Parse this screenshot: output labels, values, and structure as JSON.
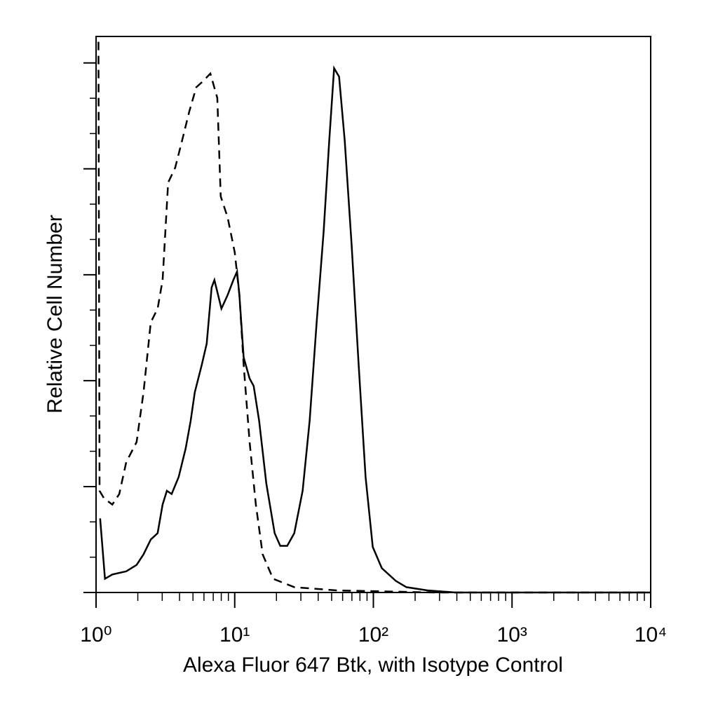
{
  "chart_data": {
    "type": "line",
    "xlabel": "Alexa Fluor 647 Btk, with Isotype Control",
    "ylabel": "Relative Cell Number",
    "xscale": "log",
    "xlim": [
      1,
      10000
    ],
    "xticks": [
      {
        "value": 1,
        "label": "10⁰"
      },
      {
        "value": 10,
        "label": "10¹"
      },
      {
        "value": 100,
        "label": "10²"
      },
      {
        "value": 1000,
        "label": "10³"
      },
      {
        "value": 10000,
        "label": "10⁴"
      }
    ],
    "ylim": [
      0,
      5.25
    ],
    "yticks": [
      0,
      1,
      2,
      3,
      4,
      5
    ],
    "series": [
      {
        "color": "#000000",
        "style": "solid",
        "x": [
          1.07,
          1.16,
          1.31,
          1.65,
          1.96,
          2.2,
          2.48,
          2.78,
          3.02,
          3.24,
          3.51,
          3.94,
          4.43,
          4.81,
          5.15,
          5.79,
          6.28,
          6.81,
          7.14,
          8.02,
          8.9,
          9.77,
          10.4,
          10.8,
          11.6,
          12.8,
          13.7,
          15.0,
          16.9,
          19.4,
          21.3,
          23.9,
          26.9,
          30.9,
          34.7,
          39.0,
          43.8,
          48.1,
          52.1,
          56.6,
          62.1,
          69.7,
          78.3,
          87.9,
          98.9,
          115,
          145,
          173,
          245,
          390,
          10000
        ],
        "values": [
          0.7,
          0.13,
          0.17,
          0.2,
          0.26,
          0.36,
          0.5,
          0.56,
          0.83,
          0.96,
          0.93,
          1.09,
          1.36,
          1.62,
          1.89,
          2.15,
          2.35,
          2.88,
          2.95,
          2.68,
          2.81,
          2.95,
          3.03,
          2.81,
          2.22,
          2.02,
          1.95,
          1.62,
          1.03,
          0.56,
          0.44,
          0.44,
          0.56,
          0.96,
          1.62,
          2.55,
          3.41,
          4.27,
          4.95,
          4.87,
          4.27,
          3.28,
          2.15,
          1.09,
          0.43,
          0.23,
          0.11,
          0.05,
          0.02,
          0,
          0
        ]
      },
      {
        "color": "#000000",
        "style": "dashed",
        "x": [
          1.04,
          1.06,
          1.14,
          1.31,
          1.47,
          1.65,
          1.96,
          2.2,
          2.48,
          2.78,
          3.02,
          3.31,
          3.72,
          4.18,
          4.7,
          5.28,
          5.93,
          6.67,
          7.49,
          7.93,
          8.9,
          10.0,
          10.8,
          11.6,
          12.8,
          14.2,
          15.9,
          18.9,
          26.9,
          54.0,
          275,
          10000
        ],
        "values": [
          5.2,
          0.96,
          0.89,
          0.83,
          0.93,
          1.23,
          1.42,
          1.89,
          2.55,
          2.68,
          2.95,
          3.87,
          4.01,
          4.27,
          4.54,
          4.77,
          4.83,
          4.9,
          4.67,
          3.74,
          3.54,
          3.21,
          2.81,
          2.15,
          1.42,
          0.83,
          0.36,
          0.13,
          0.05,
          0.02,
          0,
          0
        ]
      }
    ]
  }
}
